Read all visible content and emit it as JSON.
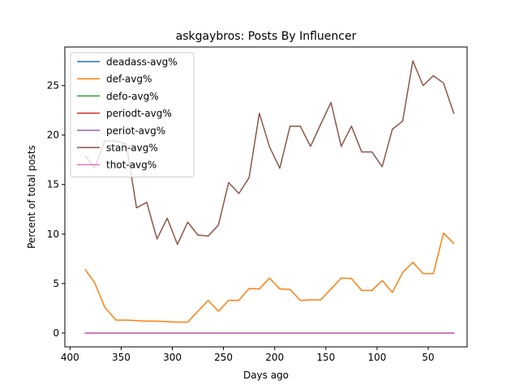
{
  "chart_data": {
    "type": "line",
    "title": "askgaybros: Posts By Influencer",
    "xlabel": "Days ago",
    "ylabel": "Percent of total posts",
    "xlim": [
      405,
      12
    ],
    "ylim": [
      -1.4,
      28.9
    ],
    "x_inverted": true,
    "xticks": [
      400,
      350,
      300,
      250,
      200,
      150,
      100,
      50
    ],
    "yticks": [
      0,
      5,
      10,
      15,
      20,
      25
    ],
    "grid": false,
    "legend_position": "upper-left",
    "x": [
      385,
      376,
      366,
      355,
      345,
      335,
      325,
      315,
      305,
      295,
      285,
      275,
      265,
      255,
      245,
      235,
      225,
      215,
      205,
      195,
      185,
      175,
      165,
      155,
      145,
      135,
      125,
      115,
      105,
      95,
      85,
      75,
      65,
      55,
      45,
      35,
      25
    ],
    "series": [
      {
        "name": "deadass-avg%",
        "color": "#1f77b4",
        "values": [
          0,
          0,
          0,
          0,
          0,
          0,
          0,
          0,
          0,
          0,
          0,
          0,
          0,
          0,
          0,
          0,
          0,
          0,
          0,
          0,
          0,
          0,
          0,
          0,
          0,
          0,
          0,
          0,
          0,
          0,
          0,
          0,
          0,
          0,
          0,
          0,
          0
        ]
      },
      {
        "name": "def-avg%",
        "color": "#ff7f0e",
        "values": [
          6.4,
          5.1,
          2.6,
          1.3,
          1.3,
          1.25,
          1.2,
          1.2,
          1.15,
          1.1,
          1.1,
          2.2,
          3.3,
          2.2,
          3.3,
          3.3,
          4.5,
          4.45,
          5.55,
          4.45,
          4.4,
          3.3,
          3.35,
          3.35,
          4.45,
          5.55,
          5.5,
          4.3,
          4.3,
          5.3,
          4.1,
          6.1,
          7.15,
          6.0,
          6.0,
          10.1,
          9.05
        ]
      },
      {
        "name": "defo-avg%",
        "color": "#2ca02c",
        "values": [
          0,
          0,
          0,
          0,
          0,
          0,
          0,
          0,
          0,
          0,
          0,
          0,
          0,
          0,
          0,
          0,
          0,
          0,
          0,
          0,
          0,
          0,
          0,
          0,
          0,
          0,
          0,
          0,
          0,
          0,
          0,
          0,
          0,
          0,
          0,
          0,
          0
        ]
      },
      {
        "name": "periodt-avg%",
        "color": "#d62728",
        "values": [
          0,
          0,
          0,
          0,
          0,
          0,
          0,
          0,
          0,
          0,
          0,
          0,
          0,
          0,
          0,
          0,
          0,
          0,
          0,
          0,
          0,
          0,
          0,
          0,
          0,
          0,
          0,
          0,
          0,
          0,
          0,
          0,
          0,
          0,
          0,
          0,
          0
        ]
      },
      {
        "name": "periot-avg%",
        "color": "#9467bd",
        "values": [
          0,
          0,
          0,
          0,
          0,
          0,
          0,
          0,
          0,
          0,
          0,
          0,
          0,
          0,
          0,
          0,
          0,
          0,
          0,
          0,
          0,
          0,
          0,
          0,
          0,
          0,
          0,
          0,
          0,
          0,
          0,
          0,
          0,
          0,
          0,
          0,
          0
        ]
      },
      {
        "name": "stan-avg%",
        "color": "#8c564b",
        "values": [
          17.9,
          16.7,
          19.4,
          19.4,
          19.1,
          12.65,
          13.2,
          9.5,
          11.6,
          8.95,
          11.2,
          9.9,
          9.8,
          10.9,
          15.2,
          14.1,
          15.7,
          22.2,
          18.8,
          16.65,
          20.9,
          20.9,
          18.85,
          21.1,
          23.3,
          18.85,
          20.9,
          18.3,
          18.3,
          16.8,
          20.6,
          21.4,
          27.5,
          25.0,
          26.0,
          25.25,
          22.2
        ]
      },
      {
        "name": "thot-avg%",
        "color": "#e377c2",
        "values": [
          0,
          0,
          0,
          0,
          0,
          0,
          0,
          0,
          0,
          0,
          0,
          0,
          0,
          0,
          0,
          0,
          0,
          0,
          0,
          0,
          0,
          0,
          0,
          0,
          0,
          0,
          0,
          0,
          0,
          0,
          0,
          0,
          0,
          0,
          0,
          0,
          0
        ]
      }
    ]
  }
}
